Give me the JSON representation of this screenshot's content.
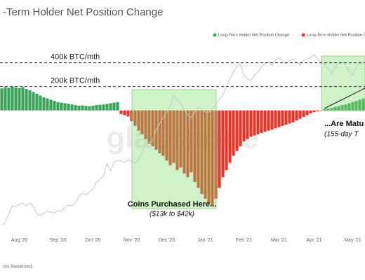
{
  "chart_data": {
    "type": "bar",
    "title": "-Term Holder Net Position Change",
    "legend": [
      {
        "name": "Long-Term Holder Net Position Change",
        "color": "#3aa35a"
      },
      {
        "name": "Long-Term Holder Net Position Change",
        "color": "#e0392b"
      }
    ],
    "categories": [
      null,
      null,
      null,
      null,
      null,
      "Aug '20",
      null,
      null,
      null,
      null,
      null,
      null,
      null,
      null,
      null,
      null,
      "Sep '20",
      null,
      null,
      null,
      null,
      null,
      null,
      null,
      null,
      null,
      "Oct '20",
      null,
      null,
      null,
      null,
      null,
      null,
      null,
      null,
      null,
      null,
      "Nov '20",
      null,
      null,
      null,
      null,
      null,
      null,
      null,
      null,
      null,
      "Dec '20",
      null,
      null,
      null,
      null,
      null,
      null,
      null,
      null,
      null,
      null,
      "Jan '21",
      null,
      null,
      null,
      null,
      null,
      null,
      null,
      null,
      null,
      null,
      "Feb '21",
      null,
      null,
      null,
      null,
      null,
      null,
      null,
      null,
      null,
      "Mar '21",
      null,
      null,
      null,
      null,
      null,
      null,
      null,
      null,
      null,
      "Apr '21",
      null,
      null,
      null,
      null,
      null,
      null,
      null,
      null,
      null,
      null,
      "May '21",
      null,
      null,
      null
    ],
    "values": [
      185000,
      195000,
      190000,
      200000,
      192000,
      188000,
      195000,
      180000,
      170000,
      155000,
      140000,
      125000,
      110000,
      100000,
      90000,
      80000,
      70000,
      65000,
      60000,
      55000,
      50000,
      45000,
      40000,
      42000,
      38000,
      35000,
      40000,
      45000,
      48000,
      50000,
      55000,
      60000,
      65000,
      70000,
      -30000,
      -40000,
      -50000,
      -90000,
      -130000,
      -170000,
      -200000,
      -240000,
      -280000,
      -300000,
      -330000,
      -360000,
      -380000,
      -420000,
      -460000,
      -440000,
      -500000,
      -480000,
      -530000,
      -560000,
      -520000,
      -600000,
      -650000,
      -700000,
      -740000,
      -780000,
      -800000,
      -740000,
      -650000,
      -560000,
      -500000,
      -440000,
      -380000,
      -340000,
      -300000,
      -260000,
      -240000,
      -220000,
      -210000,
      -200000,
      -190000,
      -180000,
      -170000,
      -160000,
      -150000,
      -140000,
      -130000,
      -120000,
      -110000,
      -100000,
      -85000,
      -70000,
      -55000,
      -40000,
      -25000,
      -15000,
      -8000,
      -3000,
      10000,
      15000,
      20000,
      30000,
      35000,
      45000,
      50000,
      60000,
      70000,
      80000,
      90000,
      100000
    ],
    "ylim": [
      -1070000,
      750000
    ],
    "series": [
      {
        "color": "#c8c8c8",
        "axis": "y2",
        "values": [
          9300,
          9500,
          10500,
          11500,
          11300,
          11700,
          11800,
          11500,
          11900,
          11400,
          10500,
          10300,
          10600,
          10800,
          10700,
          10600,
          10900,
          10800,
          11300,
          11600,
          11500,
          11900,
          12800,
          13200,
          13000,
          13500,
          13800,
          15000,
          15500,
          16000,
          18500,
          17000,
          18800,
          19200,
          19000,
          18700,
          19300,
          19000,
          18500,
          19200,
          21000,
          23000,
          23500,
          23800,
          27000,
          29000,
          31000,
          33000,
          35000,
          40000,
          38000,
          36000,
          34000,
          32000,
          31000,
          33000,
          35000,
          34000,
          33000,
          33000,
          34000,
          36000,
          38000,
          40000,
          44000,
          48000,
          52000,
          55000,
          57000,
          50000,
          48000,
          47000,
          50000,
          52000,
          55000,
          57000,
          58000,
          56000,
          59000,
          61000,
          58000,
          57000,
          59000,
          60000,
          58000,
          56000,
          59000,
          60000,
          61000,
          63000,
          60000,
          58000,
          56000,
          54000,
          51000,
          55000,
          57000,
          58000,
          56000,
          52000,
          50000,
          55000,
          58000,
          56000
        ]
      }
    ],
    "y2lim": [
      8000,
      92000
    ],
    "y2scale": "log",
    "reference_lines": [
      {
        "value": 400000,
        "label": "400k BTC/mth"
      },
      {
        "value": 200000,
        "label": "200k BTC/mth"
      }
    ],
    "annotations": [
      "Coins Purchased Here...",
      "($13k to $42k)",
      "...Are Matu",
      "(155-day T"
    ],
    "watermark": "glassnode",
    "footer": "nts Reserved."
  }
}
